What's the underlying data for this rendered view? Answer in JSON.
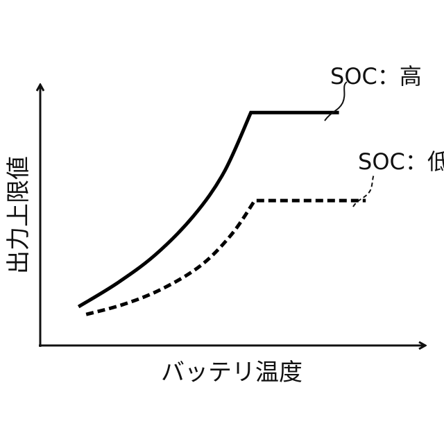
{
  "chart_data": {
    "type": "line",
    "title": "",
    "xlabel": "バッテリ温度",
    "ylabel": "出力上限値",
    "grid": false,
    "axis_ticks": "none (qualitative axes)",
    "series": [
      {
        "name": "SOC：高",
        "style": "solid",
        "color": "#000000",
        "points": [
          [
            0.1,
            0.15
          ],
          [
            0.2,
            0.24
          ],
          [
            0.3,
            0.35
          ],
          [
            0.4,
            0.5
          ],
          [
            0.48,
            0.67
          ],
          [
            0.55,
            0.9
          ],
          [
            0.78,
            0.9
          ]
        ]
      },
      {
        "name": "SOC：低",
        "style": "dashed",
        "color": "#000000",
        "points": [
          [
            0.12,
            0.12
          ],
          [
            0.22,
            0.16
          ],
          [
            0.32,
            0.22
          ],
          [
            0.42,
            0.31
          ],
          [
            0.5,
            0.43
          ],
          [
            0.56,
            0.56
          ],
          [
            0.85,
            0.56
          ]
        ]
      }
    ]
  }
}
